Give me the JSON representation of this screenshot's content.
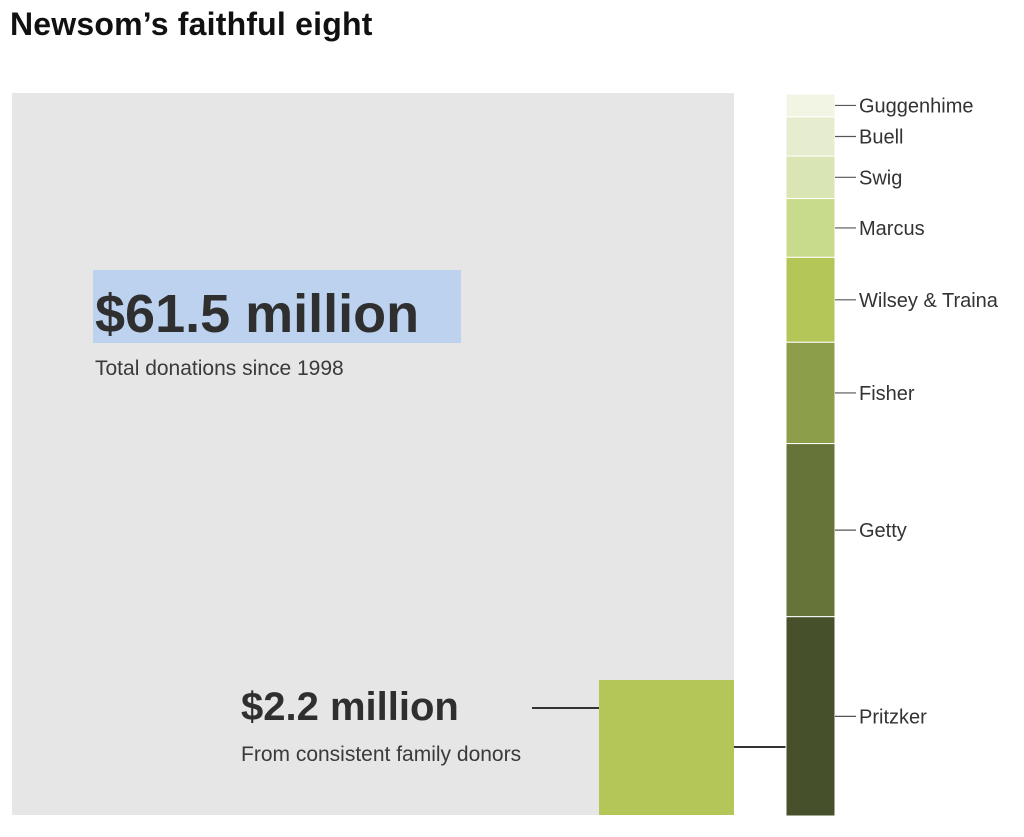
{
  "chart_data": {
    "type": "bar",
    "title": "Newsom’s faithful eight",
    "total": {
      "value": 61.5,
      "unit": "million dollars",
      "label": "$61.5 million",
      "caption": "Total donations since 1998"
    },
    "family": {
      "value": 2.2,
      "unit": "million dollars",
      "label": "$2.2 million",
      "caption": "From consistent family donors"
    },
    "segments": [
      {
        "name": "Guggenhime",
        "value": 0.07,
        "color": "#f3f5e4"
      },
      {
        "name": "Buell",
        "value": 0.12,
        "color": "#e6edcf"
      },
      {
        "name": "Swig",
        "value": 0.13,
        "color": "#d9e6b4"
      },
      {
        "name": "Marcus",
        "value": 0.18,
        "color": "#c8db8d"
      },
      {
        "name": "Wilsey & Traina",
        "value": 0.26,
        "color": "#b3c657"
      },
      {
        "name": "Fisher",
        "value": 0.31,
        "color": "#8c9e4a"
      },
      {
        "name": "Getty",
        "value": 0.53,
        "color": "#66743a"
      },
      {
        "name": "Pritzker",
        "value": 0.61,
        "color": "#46502a"
      }
    ],
    "colors": {
      "total_area": "#e6e6e6",
      "family_box": "#b3c657",
      "highlight": "#bcd2ee",
      "leader": "#333333"
    }
  }
}
